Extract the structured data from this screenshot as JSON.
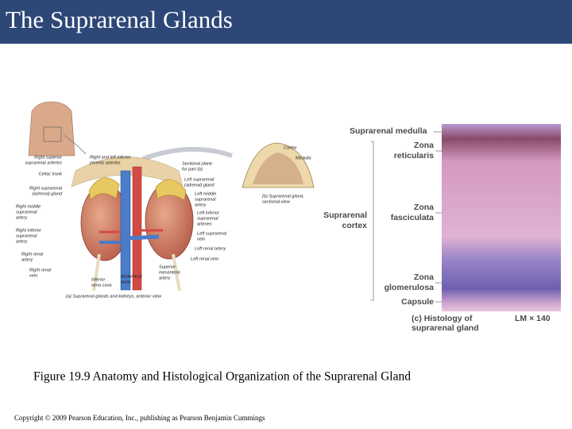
{
  "header": {
    "title": "The Suprarenal Glands"
  },
  "figure": {
    "labels": [
      [
        "Right superior",
        "suprarenal arteries"
      ],
      [
        "Right and left inferior",
        "phrenic arteries"
      ],
      [
        "Celiac trunk"
      ],
      [
        "Right suprarenal",
        "(adrenal) gland"
      ],
      [
        "Right middle",
        "suprarenal",
        "artery"
      ],
      [
        "Right inferior",
        "suprarenal",
        "artery"
      ],
      [
        "Right renal",
        "artery"
      ],
      [
        "Right renal",
        "vein"
      ],
      [
        "Inferior",
        "vena cava"
      ],
      [
        "Abdominal",
        "aorta"
      ],
      [
        "Superior",
        "mesenteric",
        "artery"
      ],
      [
        "Left renal vein"
      ],
      [
        "Left renal artery"
      ],
      [
        "Left suprarenal",
        "vein"
      ],
      [
        "Left inferior",
        "suprarenal",
        "arteries"
      ],
      [
        "Left middle",
        "suprarenal",
        "artery"
      ],
      [
        "Left suprarenal",
        "(adrenal) gland"
      ],
      [
        "Sectional plane",
        "for part (b)"
      ],
      [
        "(a) Suprarenal glands and kidneys, anterior view"
      ],
      [
        "Cortex"
      ],
      [
        "Medulla"
      ],
      [
        "(b) Suprarenal gland,",
        "sectional view"
      ],
      [
        "Suprarenal medulla"
      ],
      [
        "Zona",
        "reticularis"
      ],
      [
        "Suprarenal",
        "cortex"
      ],
      [
        "Zona",
        "fasciculata"
      ],
      [
        "Zona",
        "glomerulosa"
      ],
      [
        "Capsule"
      ],
      [
        "(c) Histology of",
        "suprarenal gland"
      ],
      [
        "LM × 140"
      ]
    ],
    "caption": "Figure 19.9 Anatomy and Histological Organization of the Suprarenal Gland"
  },
  "footer": {
    "copyright": "Copyright © 2009 Pearson Education, Inc., publishing as Pearson Benjamin Cummings"
  }
}
